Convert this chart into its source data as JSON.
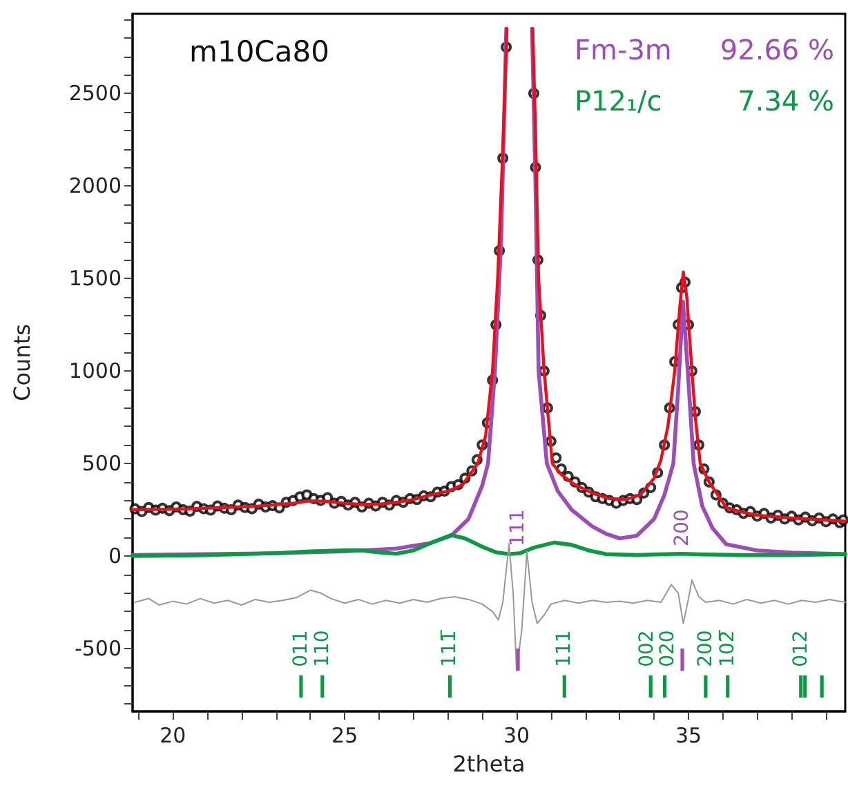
{
  "chart_data": {
    "type": "line",
    "title": "m10Ca80",
    "xlabel": "2theta",
    "ylabel": "Counts",
    "annotations": [
      "92.66 %",
      "7.34 %",
      {
        "text": "011",
        "x": 23.73,
        "y": -645
      },
      {
        "text": "110",
        "x": 24.35,
        "y": -645
      },
      {
        "text": "111̅",
        "x": 28.06,
        "y": -645
      },
      {
        "text": "111",
        "x": 31.39,
        "y": -645
      },
      {
        "text": "002",
        "x": 33.9,
        "y": -645
      },
      {
        "text": "020",
        "x": 34.31,
        "y": -645
      },
      {
        "text": "200",
        "x": 35.5,
        "y": -645
      },
      {
        "text": "102̅",
        "x": 36.14,
        "y": -645
      },
      {
        "text": "012",
        "x": 38.27,
        "y": -645
      },
      "111",
      "200"
    ],
    "legend": "top right",
    "xlim": [
      18.83,
      39.56
    ],
    "ylim": [
      -840,
      2930
    ],
    "xticks": [
      {
        "value": 19,
        "label": null
      },
      20,
      {
        "value": 21,
        "label": null
      },
      {
        "value": 22,
        "label": null
      },
      {
        "value": 23,
        "label": null
      },
      {
        "value": 24,
        "label": null
      },
      25,
      {
        "value": 26,
        "label": null
      },
      {
        "value": 27,
        "label": null
      },
      {
        "value": 28,
        "label": null
      },
      {
        "value": 29,
        "label": null
      },
      30,
      {
        "value": 31,
        "label": null
      },
      {
        "value": 32,
        "label": null
      },
      {
        "value": 33,
        "label": null
      },
      {
        "value": 34,
        "label": null
      },
      35,
      {
        "value": 36,
        "label": null
      },
      {
        "value": 37,
        "label": null
      },
      {
        "value": 38,
        "label": null
      },
      {
        "value": 39,
        "label": null
      }
    ],
    "yticks": [
      {
        "value": -800,
        "label": null
      },
      {
        "value": -700,
        "label": null
      },
      {
        "value": -600,
        "label": null
      },
      -500,
      {
        "value": -400,
        "label": null
      },
      {
        "value": -300,
        "label": null
      },
      {
        "value": -200,
        "label": null
      },
      {
        "value": -100,
        "label": null
      },
      0,
      {
        "value": 100,
        "label": null
      },
      {
        "value": 200,
        "label": null
      },
      {
        "value": 300,
        "label": null
      },
      {
        "value": 400,
        "label": null
      },
      500,
      {
        "value": 600,
        "label": null
      },
      {
        "value": 700,
        "label": null
      },
      {
        "value": 800,
        "label": null
      },
      {
        "value": 900,
        "label": null
      },
      1000,
      {
        "value": 1100,
        "label": null
      },
      {
        "value": 1200,
        "label": null
      },
      {
        "value": 1300,
        "label": null
      },
      {
        "value": 1400,
        "label": null
      },
      1500,
      {
        "value": 1600,
        "label": null
      },
      {
        "value": 1700,
        "label": null
      },
      {
        "value": 1800,
        "label": null
      },
      {
        "value": 1900,
        "label": null
      },
      2000,
      {
        "value": 2100,
        "label": null
      },
      {
        "value": 2200,
        "label": null
      },
      {
        "value": 2300,
        "label": null
      },
      {
        "value": 2400,
        "label": null
      },
      2500,
      {
        "value": 2600,
        "label": null
      },
      {
        "value": 2700,
        "label": null
      },
      {
        "value": 2800,
        "label": null
      },
      {
        "value": 2900,
        "label": null
      }
    ],
    "series": [
      {
        "type": "scatter",
        "color": "#000000",
        "marker": "circle",
        "x": [
          18.9,
          19.1,
          19.3,
          19.5,
          19.7,
          19.9,
          20.1,
          20.3,
          20.5,
          20.7,
          20.9,
          21.1,
          21.3,
          21.5,
          21.7,
          21.9,
          22.1,
          22.3,
          22.5,
          22.7,
          22.9,
          23.1,
          23.3,
          23.5,
          23.7,
          23.9,
          24.1,
          24.3,
          24.5,
          24.7,
          24.9,
          25.1,
          25.3,
          25.5,
          25.7,
          25.9,
          26.1,
          26.3,
          26.5,
          26.7,
          26.9,
          27.1,
          27.3,
          27.5,
          27.7,
          27.9,
          28.1,
          28.3,
          28.5,
          28.7,
          28.85,
          29.0,
          29.15,
          29.3,
          29.4,
          29.5,
          29.6,
          29.7,
          30.5,
          30.55,
          30.62,
          30.7,
          30.8,
          30.9,
          31.0,
          31.15,
          31.3,
          31.5,
          31.7,
          31.9,
          32.1,
          32.3,
          32.5,
          32.7,
          32.9,
          33.1,
          33.3,
          33.5,
          33.7,
          33.9,
          34.1,
          34.3,
          34.45,
          34.6,
          34.7,
          34.8,
          34.9,
          35.0,
          35.1,
          35.2,
          35.3,
          35.45,
          35.6,
          35.8,
          36.0,
          36.2,
          36.4,
          36.6,
          36.8,
          37.0,
          37.2,
          37.4,
          37.6,
          37.8,
          38.0,
          38.2,
          38.4,
          38.6,
          38.8,
          39.0,
          39.2,
          39.4,
          39.5
        ],
        "values": [
          255,
          240,
          262,
          248,
          258,
          245,
          265,
          250,
          242,
          268,
          255,
          248,
          270,
          258,
          250,
          275,
          262,
          255,
          280,
          265,
          272,
          260,
          290,
          300,
          320,
          330,
          310,
          300,
          315,
          285,
          295,
          275,
          290,
          265,
          285,
          270,
          290,
          275,
          300,
          290,
          310,
          305,
          325,
          320,
          345,
          350,
          375,
          385,
          420,
          460,
          520,
          600,
          720,
          950,
          1250,
          1650,
          2150,
          2750,
          2500,
          2100,
          1600,
          1300,
          1000,
          800,
          620,
          530,
          470,
          430,
          400,
          370,
          345,
          320,
          310,
          300,
          285,
          300,
          310,
          305,
          340,
          370,
          450,
          600,
          800,
          1050,
          1250,
          1450,
          1480,
          1250,
          1000,
          780,
          600,
          470,
          400,
          330,
          285,
          260,
          250,
          230,
          240,
          215,
          230,
          205,
          220,
          200,
          215,
          195,
          210,
          190,
          205,
          185,
          200,
          180,
          195
        ]
      },
      {
        "color": "#e8101a",
        "x": [
          18.83,
          19.5,
          20.5,
          21.5,
          22.5,
          23.5,
          24,
          24.5,
          25,
          25.5,
          26,
          26.5,
          27,
          27.5,
          28,
          28.43,
          28.87,
          29.1,
          29.3,
          29.45,
          29.6,
          29.72,
          30.1,
          30.47,
          30.55,
          30.64,
          30.8,
          31.04,
          31.3,
          31.66,
          32.2,
          32.7,
          33.16,
          33.6,
          34,
          34.2,
          34.4,
          34.6,
          34.75,
          34.85,
          34.95,
          35.1,
          35.2,
          35.34,
          35.6,
          36.1,
          36.5,
          37,
          38,
          39,
          39.56
        ],
        "values": [
          250,
          252,
          255,
          262,
          270,
          285,
          298,
          295,
          285,
          278,
          280,
          290,
          305,
          330,
          350,
          385,
          500,
          650,
          1000,
          1500,
          2200,
          2850,
          null,
          2850,
          2300,
          1500,
          1000,
          500,
          440,
          390,
          340,
          310,
          305,
          330,
          420,
          520,
          700,
          1000,
          1350,
          1535,
          1400,
          1000,
          750,
          500,
          400,
          262,
          240,
          220,
          205,
          195,
          188
        ]
      },
      {
        "name": "Fm-3m",
        "color": "#9b4fb5",
        "x": [
          18.83,
          21,
          23,
          25,
          26.5,
          27.5,
          28.1,
          28.6,
          29,
          29.17,
          29.37,
          29.55,
          29.7,
          30.1,
          30.45,
          30.55,
          30.64,
          30.88,
          31.2,
          31.6,
          32.2,
          32.6,
          33,
          33.5,
          34,
          34.3,
          34.56,
          34.7,
          34.84,
          34.98,
          35.15,
          35.4,
          35.7,
          36.1,
          37,
          38,
          39.56
        ],
        "values": [
          5,
          10,
          15,
          25,
          40,
          70,
          110,
          200,
          380,
          500,
          1000,
          1700,
          2850,
          null,
          2850,
          2000,
          1000,
          500,
          350,
          250,
          160,
          120,
          95,
          110,
          200,
          330,
          500,
          900,
          1375,
          1000,
          500,
          270,
          150,
          63,
          30,
          18,
          10
        ]
      },
      {
        "name": "P12₁/c",
        "color": "#0a9a45",
        "x": [
          18.83,
          20,
          21,
          22,
          23,
          24,
          25,
          25.5,
          26,
          26.5,
          27,
          27.5,
          28.1,
          28.5,
          29,
          29.4,
          29.76,
          30.1,
          30.5,
          31.1,
          31.6,
          32.1,
          32.6,
          33.5,
          34,
          34.8,
          35.5,
          36.5,
          38,
          39.56
        ],
        "values": [
          0,
          2,
          5,
          10,
          15,
          25,
          30,
          30,
          20,
          12,
          30,
          70,
          113,
          95,
          50,
          20,
          10,
          15,
          45,
          73,
          60,
          30,
          10,
          5,
          8,
          12,
          8,
          5,
          5,
          10
        ]
      },
      {
        "color": "#999999",
        "x": [
          18.9,
          19.3,
          19.6,
          20,
          20.4,
          20.8,
          21.2,
          21.6,
          22,
          22.4,
          22.8,
          23.2,
          23.6,
          24,
          24.3,
          24.6,
          25,
          25.4,
          25.8,
          26.2,
          26.6,
          27,
          27.4,
          27.8,
          28.2,
          28.6,
          29,
          29.3,
          29.47,
          29.6,
          29.78,
          29.9,
          30.0,
          30.15,
          30.3,
          30.45,
          30.6,
          30.8,
          31,
          31.4,
          31.8,
          32.2,
          32.6,
          33,
          33.4,
          33.8,
          34.2,
          34.5,
          34.7,
          34.85,
          35.0,
          35.1,
          35.3,
          35.5,
          35.9,
          36.3,
          36.7,
          37.1,
          37.5,
          37.9,
          38.3,
          38.7,
          39.1,
          39.56
        ],
        "values": [
          -250,
          -230,
          -265,
          -245,
          -260,
          -230,
          -255,
          -240,
          -265,
          -235,
          -250,
          -240,
          -225,
          -185,
          -200,
          -230,
          -255,
          -235,
          -260,
          -240,
          -255,
          -235,
          -250,
          -230,
          -220,
          -235,
          -260,
          -300,
          -345,
          -250,
          65,
          -200,
          -620,
          -400,
          25,
          -250,
          -365,
          -320,
          -260,
          -240,
          -255,
          -240,
          -250,
          -245,
          -255,
          -240,
          -250,
          -155,
          -200,
          -365,
          -230,
          -130,
          -220,
          -250,
          -240,
          -260,
          -235,
          -255,
          -240,
          -260,
          -240,
          -250,
          -235,
          -250
        ]
      },
      {
        "type": "bar",
        "color": "#0a9a45",
        "x": [
          23.73,
          24.35,
          28.06,
          31.39,
          33.9,
          34.31,
          35.5,
          36.14,
          38.27,
          38.39,
          38.88
        ],
        "base": [
          -765,
          -765,
          -765,
          -765,
          -765,
          -765,
          -765,
          -765,
          -765,
          -765,
          -765
        ],
        "values": [
          120,
          120,
          120,
          120,
          120,
          120,
          120,
          120,
          120,
          120,
          120
        ]
      },
      {
        "type": "bar",
        "color": "#9b4fb5",
        "x": [
          30.04,
          34.82
        ],
        "base": [
          -620,
          -620
        ],
        "values": [
          120,
          120
        ]
      }
    ]
  }
}
